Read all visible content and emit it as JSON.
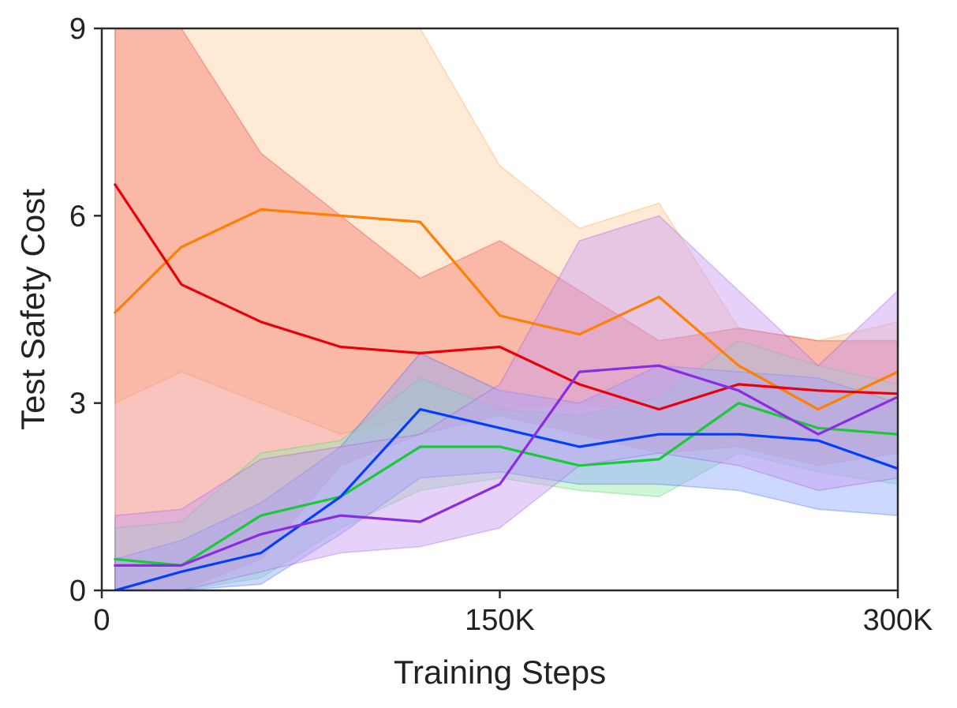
{
  "chart_data": {
    "type": "line",
    "xlabel": "Training Steps",
    "ylabel": "Test Safety Cost",
    "xlim": [
      0,
      300000
    ],
    "ylim": [
      0,
      9
    ],
    "grid": false,
    "legend": "none",
    "x_ticks": [
      {
        "value": 0,
        "label": "0"
      },
      {
        "value": 150000,
        "label": "150K"
      },
      {
        "value": 300000,
        "label": "300K"
      }
    ],
    "y_ticks": [
      {
        "value": 0,
        "label": "0"
      },
      {
        "value": 3,
        "label": "3"
      },
      {
        "value": 6,
        "label": "6"
      },
      {
        "value": 9,
        "label": "9"
      }
    ],
    "x": [
      5000,
      30000,
      60000,
      90000,
      120000,
      150000,
      180000,
      210000,
      240000,
      270000,
      300000
    ],
    "series": [
      {
        "color": "#ff7f00",
        "band_color": "#ffd1a3",
        "values": [
          4.45,
          5.5,
          6.1,
          6.0,
          5.9,
          4.4,
          4.1,
          4.7,
          3.6,
          2.9,
          3.5
        ],
        "lower": [
          3.0,
          3.5,
          3.0,
          2.5,
          2.8,
          2.9,
          3.0,
          2.8,
          2.4,
          2.2,
          2.5
        ],
        "upper": [
          9.0,
          9.0,
          9.0,
          9.0,
          9.0,
          6.8,
          5.8,
          6.2,
          4.2,
          4.0,
          4.3
        ]
      },
      {
        "color": "#e8000b",
        "band_color": "#f47c6e",
        "values": [
          6.5,
          4.9,
          4.3,
          3.9,
          3.8,
          3.9,
          3.3,
          2.9,
          3.3,
          3.2,
          3.15
        ],
        "lower": [
          0.0,
          0.0,
          0.5,
          2.0,
          2.5,
          2.8,
          2.5,
          2.2,
          2.3,
          2.0,
          2.2
        ],
        "upper": [
          9.0,
          9.0,
          7.0,
          6.0,
          5.0,
          5.6,
          4.8,
          4.0,
          4.2,
          4.0,
          4.0
        ]
      },
      {
        "color": "#1ac938",
        "band_color": "#9ae8a8",
        "values": [
          0.5,
          0.4,
          1.2,
          1.5,
          2.3,
          2.3,
          2.0,
          2.1,
          3.0,
          2.6,
          2.5
        ],
        "lower": [
          0.0,
          0.0,
          0.2,
          1.0,
          1.6,
          1.8,
          1.6,
          1.5,
          2.2,
          1.9,
          1.7
        ],
        "upper": [
          1.0,
          1.1,
          2.2,
          2.4,
          3.4,
          2.9,
          2.8,
          3.1,
          4.0,
          3.6,
          3.3
        ]
      },
      {
        "color": "#023eff",
        "band_color": "#8ea9ff",
        "values": [
          0.0,
          0.3,
          0.6,
          1.5,
          2.9,
          2.6,
          2.3,
          2.5,
          2.5,
          2.4,
          1.95
        ],
        "lower": [
          0.0,
          0.0,
          0.1,
          0.9,
          1.8,
          1.9,
          1.7,
          1.7,
          1.6,
          1.3,
          1.2
        ],
        "upper": [
          0.5,
          0.8,
          1.4,
          2.3,
          3.8,
          3.2,
          3.0,
          3.6,
          3.5,
          3.4,
          3.0
        ]
      },
      {
        "color": "#8b2be2",
        "band_color": "#c79bf2",
        "values": [
          0.4,
          0.4,
          0.9,
          1.2,
          1.1,
          1.7,
          3.5,
          3.6,
          3.2,
          2.5,
          3.1
        ],
        "lower": [
          0.0,
          0.0,
          0.3,
          0.6,
          0.7,
          1.0,
          2.0,
          2.2,
          2.0,
          1.6,
          1.8
        ],
        "upper": [
          1.2,
          1.3,
          2.1,
          2.3,
          2.5,
          3.3,
          5.6,
          6.0,
          4.8,
          3.6,
          4.8
        ]
      }
    ]
  }
}
